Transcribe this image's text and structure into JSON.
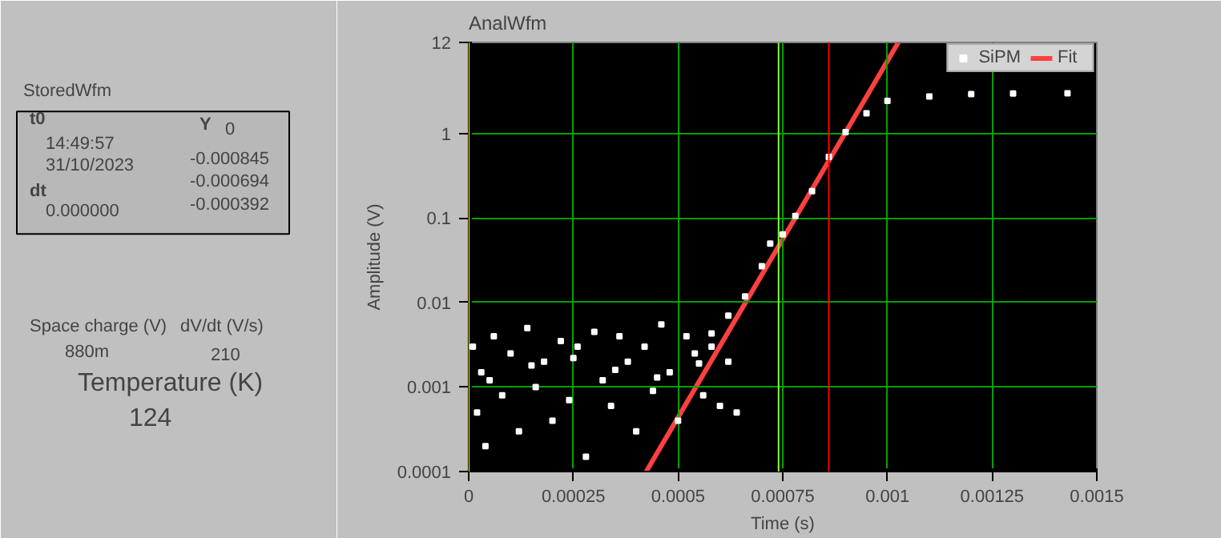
{
  "chart_data": {
    "type": "scatter",
    "title": "AnalWfm",
    "xlabel": "Time (s)",
    "ylabel": "Amplitude (V)",
    "xlim": [
      0,
      0.0015
    ],
    "xticks": [
      0,
      0.00025,
      0.0005,
      0.00075,
      0.001,
      0.00125,
      0.0015
    ],
    "ylim": [
      0.0001,
      12
    ],
    "yticks": [
      0.0001,
      0.001,
      0.01,
      0.1,
      1,
      12
    ],
    "log": "y",
    "grid": true,
    "legend": "top right",
    "marker": "square",
    "series": [
      {
        "name": "SiPM",
        "color": "#ffffff",
        "x": [
          1e-05,
          2e-05,
          3e-05,
          4e-05,
          6e-05,
          8e-05,
          0.0001,
          0.00012,
          0.00014,
          0.00016,
          0.00018,
          0.0002,
          0.00022,
          0.00024,
          0.00026,
          0.00028,
          0.0003,
          0.00032,
          0.00034,
          0.00036,
          0.00038,
          0.0004,
          0.00042,
          0.00044,
          0.00046,
          0.00048,
          0.0005,
          0.00052,
          0.00054,
          0.00056,
          0.00058,
          0.0006,
          0.00062,
          0.00064,
          5e-05,
          0.00015,
          0.00025,
          0.00035,
          0.00045,
          0.00055,
          0.00058,
          0.00062,
          0.00066,
          0.0007,
          0.00072,
          0.00075,
          0.00078,
          0.00082,
          0.00086,
          0.0009,
          0.00095,
          0.001,
          0.0011,
          0.0012,
          0.0013,
          0.00143
        ],
        "values": [
          0.003,
          0.0005,
          0.0015,
          0.0002,
          0.004,
          0.0008,
          0.0025,
          0.0003,
          0.005,
          0.001,
          0.002,
          0.0004,
          0.0035,
          0.0007,
          0.003,
          0.00015,
          0.0045,
          0.0012,
          0.0006,
          0.004,
          0.002,
          0.0003,
          0.003,
          0.0009,
          0.0055,
          0.0015,
          0.0004,
          0.004,
          0.0025,
          0.0008,
          0.003,
          0.0006,
          0.002,
          0.0005,
          0.0012,
          0.0018,
          0.0022,
          0.0016,
          0.0013,
          0.0019,
          0.0043,
          0.007,
          0.0118,
          0.027,
          0.05,
          0.064,
          0.106,
          0.209,
          0.53,
          1.04,
          1.74,
          2.44,
          2.75,
          2.94,
          2.98,
          3.0
        ]
      },
      {
        "name": "Fit",
        "color": "#ff4040",
        "type": "line",
        "marker": "none",
        "x": [
          0.000424,
          0.001026
        ],
        "values": [
          0.0001,
          12
        ]
      }
    ],
    "ref_lines": [
      {
        "axis": "x",
        "value": 0,
        "color": "#ffff00"
      },
      {
        "axis": "x",
        "value": 0.00074,
        "color": "#80ff40"
      },
      {
        "axis": "x",
        "value": 0.00086,
        "color": "#ff0000"
      }
    ],
    "annotations": [
      "StoredWfm",
      "t0",
      "14:49:57",
      "31/10/2023",
      "dt",
      "0.000000",
      "Y",
      "0",
      "-0.000845",
      "-0.000694",
      "-0.000392",
      "Space charge (V)",
      "880m",
      "dV/dt (V/s)",
      "210",
      "Temperature (K)",
      "124"
    ]
  }
}
